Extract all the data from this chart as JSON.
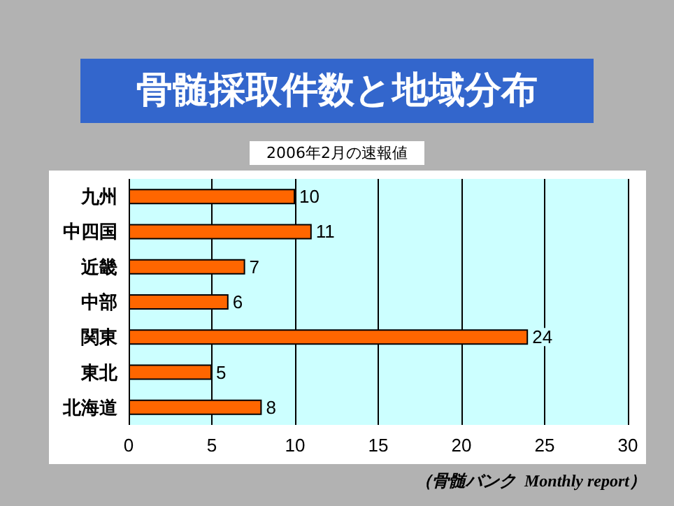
{
  "chart_data": {
    "type": "bar",
    "orientation": "horizontal",
    "title": "骨髄採取件数と地域分布",
    "subtitle": "2006年2月の速報値",
    "categories": [
      "九州",
      "中四国",
      "近畿",
      "中部",
      "関東",
      "東北",
      "北海道"
    ],
    "values": [
      10,
      11,
      7,
      6,
      24,
      5,
      8
    ],
    "color": "#ff6600",
    "xlim": [
      0,
      30
    ],
    "xticks": [
      0,
      5,
      10,
      15,
      20,
      25,
      30
    ],
    "grid": "x",
    "data_labels": true,
    "annotations": [
      "（骨髄バンク  Monthly report）"
    ]
  }
}
